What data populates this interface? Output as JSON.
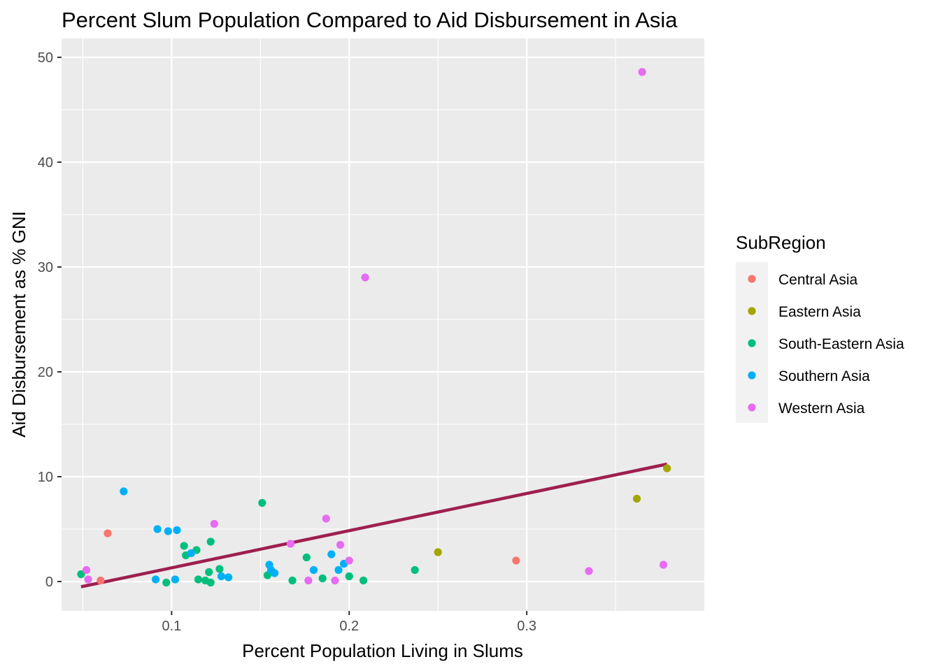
{
  "chart_data": {
    "type": "scatter",
    "title": "Percent Slum Population Compared to Aid Disbursement in Asia",
    "xlabel": "Percent Population Living in Slums",
    "ylabel": "Aid Disbursement as % GNI",
    "xlim": [
      0.038,
      0.4
    ],
    "ylim": [
      -2.8,
      51.8
    ],
    "x_ticks": [
      0.1,
      0.2,
      0.3
    ],
    "x_tick_labels": [
      "0.1",
      "0.2",
      "0.3"
    ],
    "y_ticks": [
      0,
      10,
      20,
      30,
      40,
      50
    ],
    "y_tick_labels": [
      "0",
      "10",
      "20",
      "30",
      "40",
      "50"
    ],
    "grid": true,
    "legend": {
      "title": "SubRegion",
      "placement": "right",
      "entries": [
        "Central Asia",
        "Eastern Asia",
        "South-Eastern Asia",
        "Southern Asia",
        "Western Asia"
      ]
    },
    "colors": {
      "Central Asia": "#f8766d",
      "Eastern Asia": "#a3a500",
      "South-Eastern Asia": "#00bf7d",
      "Southern Asia": "#00b0f6",
      "Western Asia": "#e76bf3",
      "trend": "#9e1f4f"
    },
    "series": [
      {
        "name": "Central Asia",
        "points": [
          [
            0.064,
            4.6
          ],
          [
            0.06,
            0.1
          ],
          [
            0.294,
            2.0
          ]
        ]
      },
      {
        "name": "Eastern Asia",
        "points": [
          [
            0.25,
            2.8
          ],
          [
            0.362,
            7.9
          ],
          [
            0.379,
            10.8
          ]
        ]
      },
      {
        "name": "South-Eastern Asia",
        "points": [
          [
            0.049,
            0.7
          ],
          [
            0.097,
            -0.1
          ],
          [
            0.107,
            3.4
          ],
          [
            0.108,
            2.5
          ],
          [
            0.114,
            3.0
          ],
          [
            0.115,
            0.2
          ],
          [
            0.119,
            0.1
          ],
          [
            0.121,
            0.9
          ],
          [
            0.122,
            3.8
          ],
          [
            0.122,
            -0.1
          ],
          [
            0.127,
            1.2
          ],
          [
            0.151,
            7.5
          ],
          [
            0.154,
            0.6
          ],
          [
            0.168,
            0.1
          ],
          [
            0.176,
            2.3
          ],
          [
            0.185,
            0.3
          ],
          [
            0.2,
            0.5
          ],
          [
            0.208,
            0.1
          ],
          [
            0.237,
            1.1
          ]
        ]
      },
      {
        "name": "Southern Asia",
        "points": [
          [
            0.073,
            8.6
          ],
          [
            0.091,
            0.2
          ],
          [
            0.092,
            5.0
          ],
          [
            0.098,
            4.8
          ],
          [
            0.102,
            0.2
          ],
          [
            0.103,
            4.9
          ],
          [
            0.111,
            2.7
          ],
          [
            0.128,
            0.5
          ],
          [
            0.132,
            0.4
          ],
          [
            0.155,
            1.6
          ],
          [
            0.156,
            1.1
          ],
          [
            0.158,
            0.8
          ],
          [
            0.18,
            1.1
          ],
          [
            0.19,
            2.6
          ],
          [
            0.194,
            1.1
          ],
          [
            0.197,
            1.7
          ]
        ]
      },
      {
        "name": "Western Asia",
        "points": [
          [
            0.052,
            1.1
          ],
          [
            0.053,
            0.2
          ],
          [
            0.124,
            5.5
          ],
          [
            0.167,
            3.6
          ],
          [
            0.177,
            0.1
          ],
          [
            0.187,
            6.0
          ],
          [
            0.192,
            0.1
          ],
          [
            0.195,
            3.5
          ],
          [
            0.2,
            2.0
          ],
          [
            0.209,
            29.0
          ],
          [
            0.335,
            1.0
          ],
          [
            0.365,
            48.6
          ],
          [
            0.377,
            1.6
          ]
        ]
      }
    ],
    "trend_line": {
      "x": [
        0.049,
        0.379
      ],
      "y": [
        -0.5,
        11.2
      ]
    }
  }
}
